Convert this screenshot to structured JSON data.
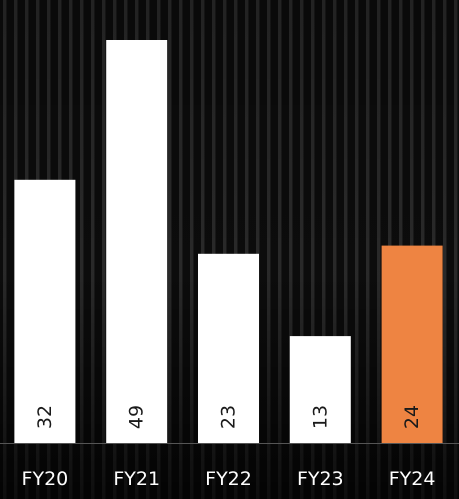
{
  "chart_data": {
    "type": "bar",
    "categories": [
      "FY20",
      "FY21",
      "FY22",
      "FY23",
      "FY24"
    ],
    "values": [
      32,
      49,
      23,
      13,
      24
    ],
    "highlight_index": 4,
    "colors": {
      "bar": "#ffffff",
      "highlight": "#ee8442",
      "label_on_bar": "#1a1a1a",
      "axis_line": "#555555",
      "tick_label": "#ffffff",
      "background": "#0b0b0b"
    },
    "ylim": [
      0,
      52
    ],
    "legend": "none",
    "grid": false
  }
}
